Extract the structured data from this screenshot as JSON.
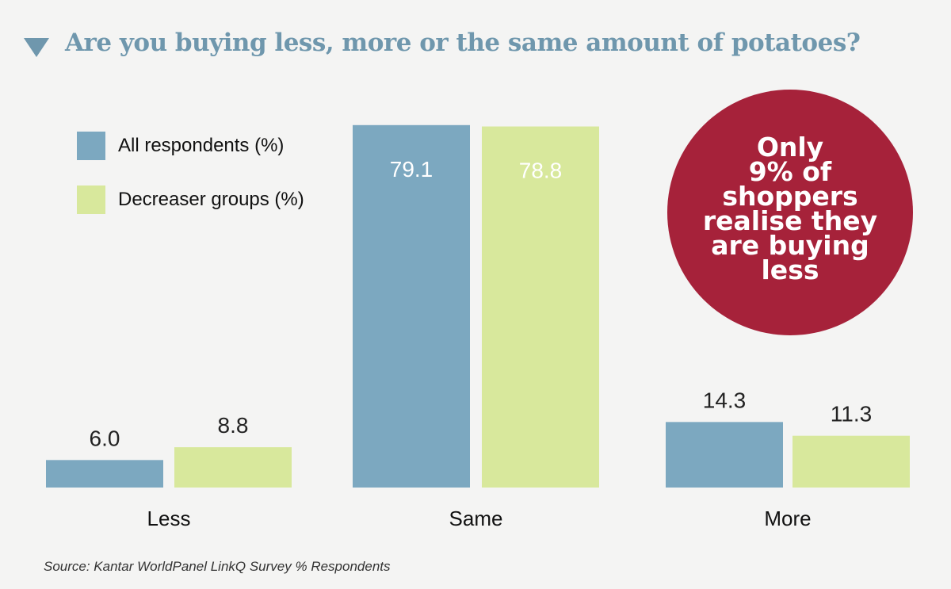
{
  "chart_data": {
    "type": "bar",
    "title": "Are you buying less, more or the same amount of potatoes?",
    "categories": [
      "Less",
      "Same",
      "More"
    ],
    "series": [
      {
        "name": "All respondents (%)",
        "values": [
          6.0,
          79.1,
          14.3
        ],
        "color": "#7ca8c0"
      },
      {
        "name": "Decreaser groups (%)",
        "values": [
          8.8,
          78.8,
          11.3
        ],
        "color": "#d8e89c"
      }
    ],
    "value_labels": [
      [
        "6.0",
        "79.1",
        "14.3"
      ],
      [
        "8.8",
        "78.8",
        "11.3"
      ]
    ],
    "xlabel": "",
    "ylabel": "",
    "ylim": [
      0,
      80
    ],
    "grid": false,
    "legend_placement": "top-left",
    "annotation": "Only\n9% of\nshoppers\nrealise they\nare buying\nless",
    "source": "Source: Kantar WorldPanel LinkQ Survey % Respondents"
  }
}
